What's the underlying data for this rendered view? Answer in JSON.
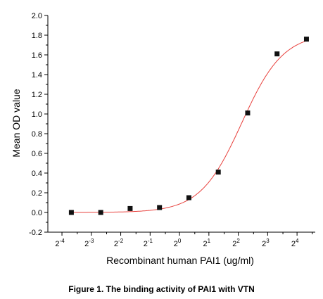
{
  "colors": {
    "curve": "#e8413d",
    "marker": "#111111",
    "axis": "#000000"
  },
  "caption": "Figure 1. The binding activity of PAI1 with VTN",
  "chart_data": {
    "type": "scatter",
    "title": "",
    "xlabel": "Recombinant human PAI1 (ug/ml)",
    "ylabel": "Mean OD value",
    "x_scale": "log2",
    "ylim": [
      -0.2,
      2.0
    ],
    "y_ticks": [
      "-0.2",
      "0.0",
      "0.2",
      "0.4",
      "0.6",
      "0.8",
      "1.0",
      "1.2",
      "1.4",
      "1.6",
      "1.8",
      "2.0"
    ],
    "x_tick_labels": [
      {
        "base": "2",
        "exp": "-4"
      },
      {
        "base": "2",
        "exp": "-3"
      },
      {
        "base": "2",
        "exp": "-2"
      },
      {
        "base": "2",
        "exp": "-1"
      },
      {
        "base": "2",
        "exp": "0"
      },
      {
        "base": "2",
        "exp": "1"
      },
      {
        "base": "2",
        "exp": "2"
      },
      {
        "base": "2",
        "exp": "3"
      },
      {
        "base": "2",
        "exp": "4"
      }
    ],
    "grid": false,
    "legend": "none",
    "series": [
      {
        "marker": "square",
        "x_log2": [
          -3.7,
          -2.7,
          -1.7,
          -0.7,
          0.3,
          1.3,
          2.3,
          3.3,
          4.3
        ],
        "y": [
          0.0,
          0.0,
          0.04,
          0.05,
          0.15,
          0.41,
          1.01,
          1.61,
          1.76
        ]
      }
    ],
    "fit_curve": {
      "type": "sigmoid",
      "color": "#e8413d"
    }
  }
}
